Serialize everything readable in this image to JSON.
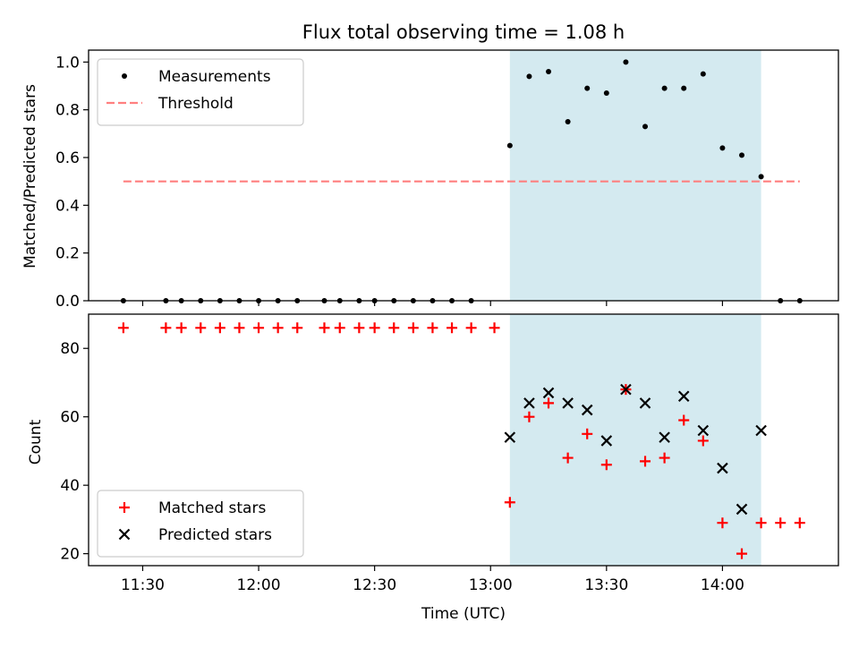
{
  "chart_data": [
    {
      "type": "scatter",
      "title": "Flux total observing time = 1.08 h",
      "xlabel": "",
      "ylabel": "Matched/Predicted stars",
      "ylim": [
        0,
        1.05
      ],
      "yticks": [
        "0.0",
        "0.2",
        "0.4",
        "0.6",
        "0.8",
        "1.0"
      ],
      "ytick_values": [
        0,
        0.2,
        0.4,
        0.6,
        0.8,
        1.0
      ],
      "xlim": [
        "11:16",
        "14:30"
      ],
      "shaded_span": {
        "start": "13:05",
        "end": "14:10",
        "color": "#d4eaf0"
      },
      "legend_position": "upper-left",
      "threshold": {
        "name": "Threshold",
        "value": 0.5,
        "x_start": "11:25",
        "x_end": "14:20",
        "color": "#ff7f7f"
      },
      "series": [
        {
          "name": "Measurements",
          "marker": "dot",
          "color": "#000000",
          "points": [
            [
              "11:25",
              0
            ],
            [
              "11:36",
              0
            ],
            [
              "11:40",
              0
            ],
            [
              "11:45",
              0
            ],
            [
              "11:50",
              0
            ],
            [
              "11:55",
              0
            ],
            [
              "12:00",
              0
            ],
            [
              "12:05",
              0
            ],
            [
              "12:10",
              0
            ],
            [
              "12:17",
              0
            ],
            [
              "12:21",
              0
            ],
            [
              "12:26",
              0
            ],
            [
              "12:30",
              0
            ],
            [
              "12:35",
              0
            ],
            [
              "12:40",
              0
            ],
            [
              "12:45",
              0
            ],
            [
              "12:50",
              0
            ],
            [
              "12:55",
              0
            ],
            [
              "13:05",
              0.65
            ],
            [
              "13:10",
              0.94
            ],
            [
              "13:15",
              0.96
            ],
            [
              "13:20",
              0.75
            ],
            [
              "13:25",
              0.89
            ],
            [
              "13:30",
              0.87
            ],
            [
              "13:35",
              1.0
            ],
            [
              "13:40",
              0.73
            ],
            [
              "13:45",
              0.89
            ],
            [
              "13:50",
              0.89
            ],
            [
              "13:55",
              0.95
            ],
            [
              "14:00",
              0.64
            ],
            [
              "14:05",
              0.61
            ],
            [
              "14:10",
              0.52
            ],
            [
              "14:15",
              0
            ],
            [
              "14:20",
              0
            ]
          ]
        }
      ]
    },
    {
      "type": "scatter",
      "title": "",
      "xlabel": "Time (UTC)",
      "ylabel": "Count",
      "ylim": [
        16.5,
        90
      ],
      "yticks": [
        "20",
        "40",
        "60",
        "80"
      ],
      "ytick_values": [
        20,
        40,
        60,
        80
      ],
      "xlim": [
        "11:16",
        "14:30"
      ],
      "xticks": [
        "11:30",
        "12:00",
        "12:30",
        "13:00",
        "13:30",
        "14:00"
      ],
      "shaded_span": {
        "start": "13:05",
        "end": "14:10",
        "color": "#d4eaf0"
      },
      "legend_position": "lower-left",
      "series": [
        {
          "name": "Matched stars",
          "marker": "plus",
          "color": "#ff0000",
          "points": [
            [
              "11:25",
              86
            ],
            [
              "11:36",
              86
            ],
            [
              "11:40",
              86
            ],
            [
              "11:45",
              86
            ],
            [
              "11:50",
              86
            ],
            [
              "11:55",
              86
            ],
            [
              "12:00",
              86
            ],
            [
              "12:05",
              86
            ],
            [
              "12:10",
              86
            ],
            [
              "12:17",
              86
            ],
            [
              "12:21",
              86
            ],
            [
              "12:26",
              86
            ],
            [
              "12:30",
              86
            ],
            [
              "12:35",
              86
            ],
            [
              "12:40",
              86
            ],
            [
              "12:45",
              86
            ],
            [
              "12:50",
              86
            ],
            [
              "12:55",
              86
            ],
            [
              "13:01",
              86
            ],
            [
              "13:05",
              35
            ],
            [
              "13:10",
              60
            ],
            [
              "13:15",
              64
            ],
            [
              "13:20",
              48
            ],
            [
              "13:25",
              55
            ],
            [
              "13:30",
              46
            ],
            [
              "13:35",
              68
            ],
            [
              "13:40",
              47
            ],
            [
              "13:45",
              48
            ],
            [
              "13:50",
              59
            ],
            [
              "13:55",
              53
            ],
            [
              "14:00",
              29
            ],
            [
              "14:05",
              20
            ],
            [
              "14:10",
              29
            ],
            [
              "14:15",
              29
            ],
            [
              "14:20",
              29
            ]
          ]
        },
        {
          "name": "Predicted stars",
          "marker": "x",
          "color": "#000000",
          "points": [
            [
              "13:05",
              54
            ],
            [
              "13:10",
              64
            ],
            [
              "13:15",
              67
            ],
            [
              "13:20",
              64
            ],
            [
              "13:25",
              62
            ],
            [
              "13:30",
              53
            ],
            [
              "13:35",
              68
            ],
            [
              "13:40",
              64
            ],
            [
              "13:45",
              54
            ],
            [
              "13:50",
              66
            ],
            [
              "13:55",
              56
            ],
            [
              "14:00",
              45
            ],
            [
              "14:05",
              33
            ],
            [
              "14:10",
              56
            ]
          ]
        }
      ]
    }
  ]
}
